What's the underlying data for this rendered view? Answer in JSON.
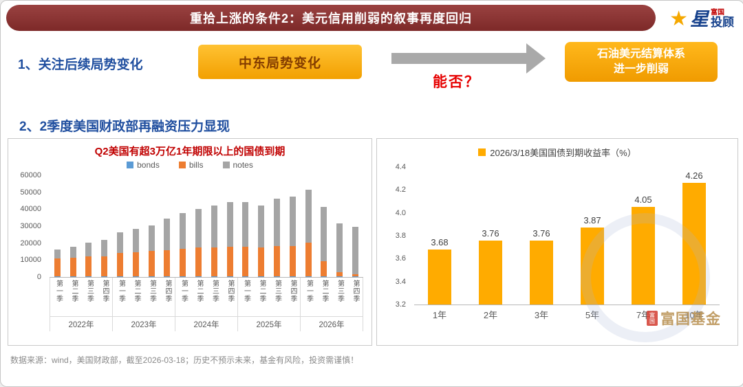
{
  "header": {
    "title": "重拾上涨的条件2：美元信用削弱的叙事再度回归",
    "logo": {
      "brand_top": "富国",
      "brand_star": "星",
      "brand_bottom": "投顾"
    }
  },
  "sections": {
    "s1_label": "1、关注后续局势变化",
    "s2_label": "2、2季度美国财政部再融资压力显现"
  },
  "flow": {
    "left_box": "中东局势变化",
    "question": "能否？",
    "right_box_line1": "石油美元结算体系",
    "right_box_line2": "进一步削弱"
  },
  "colors": {
    "header_maroon": "#8B3130",
    "section_blue": "#1F4E9F",
    "accent_orange": "#F5A800",
    "question_red": "#E60000"
  },
  "chart_data": [
    {
      "type": "bar",
      "stacked": true,
      "title": "Q2美国有超3万亿1年期限以上的国债到期",
      "legend": [
        "bonds",
        "bills",
        "notes"
      ],
      "colors": {
        "bonds": "#5B9BD5",
        "bills": "#ED7D31",
        "notes": "#A5A5A5"
      },
      "years": [
        "2022年",
        "2023年",
        "2024年",
        "2025年",
        "2026年"
      ],
      "quarters": [
        "第一季",
        "第二季",
        "第三季",
        "第四季"
      ],
      "series": [
        {
          "name": "bonds",
          "values": [
            300,
            300,
            300,
            300,
            300,
            300,
            300,
            300,
            300,
            300,
            300,
            300,
            300,
            300,
            300,
            300,
            300,
            300,
            300,
            300
          ]
        },
        {
          "name": "bills",
          "values": [
            10500,
            11000,
            12000,
            12000,
            14000,
            14500,
            15000,
            15500,
            16500,
            17000,
            17000,
            17500,
            17500,
            17000,
            18000,
            18000,
            20000,
            9000,
            2500,
            1200
          ]
        },
        {
          "name": "notes",
          "values": [
            5500,
            6500,
            8000,
            9500,
            12000,
            13500,
            15000,
            18500,
            21000,
            23000,
            25000,
            26500,
            26500,
            25000,
            28000,
            29000,
            31000,
            32000,
            29000,
            28000
          ]
        }
      ],
      "ylim": [
        0,
        60000
      ],
      "yticks": [
        0,
        10000,
        20000,
        30000,
        40000,
        50000,
        60000
      ],
      "legend_position": "top",
      "grid": false
    },
    {
      "type": "bar",
      "title": "2026/3/18美国国债到期收益率（%）",
      "categories": [
        "1年",
        "2年",
        "3年",
        "5年",
        "7年",
        "10年"
      ],
      "values": [
        3.68,
        3.76,
        3.76,
        3.87,
        4.05,
        4.26
      ],
      "bar_color": "#FFAB00",
      "ylim": [
        3.2,
        4.4
      ],
      "yticks": [
        3.2,
        3.4,
        3.6,
        3.8,
        4.0,
        4.2,
        4.4
      ],
      "legend_position": "top",
      "grid": false
    }
  ],
  "watermark": {
    "badge": "富国",
    "text": "富国基金"
  },
  "footer": {
    "text": "数据来源：wind，美国财政部，截至2026-03-18；历史不预示未来，基金有风险，投资需谨慎！"
  }
}
